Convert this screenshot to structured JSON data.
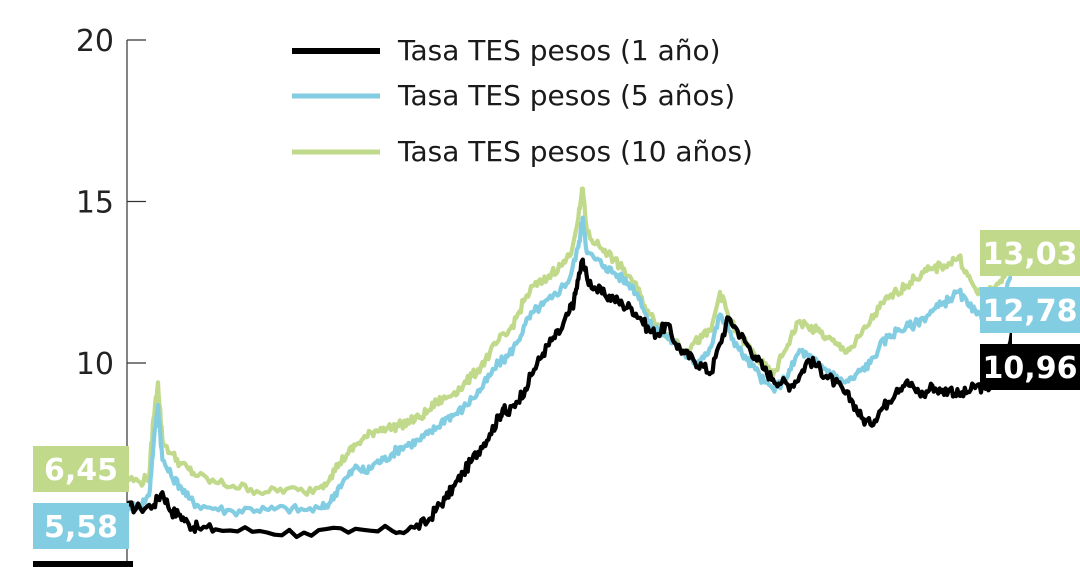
{
  "chart_data": {
    "type": "line",
    "ylim": [
      4.8,
      20
    ],
    "y_ticks": [
      {
        "value": 20,
        "label": "20"
      },
      {
        "value": 15,
        "label": "15"
      },
      {
        "value": 10,
        "label": "10"
      }
    ],
    "legend": {
      "placement": "top"
    },
    "series": [
      {
        "name": "Tasa TES pesos (1 año)",
        "color": "#000000",
        "start_label": "",
        "end_label": "10,96",
        "points": [
          [
            0,
            5.55
          ],
          [
            3,
            5.5
          ],
          [
            6,
            5.6
          ],
          [
            8,
            6.0
          ],
          [
            10,
            5.4
          ],
          [
            12,
            5.3
          ],
          [
            14,
            5.0
          ],
          [
            16,
            4.9
          ],
          [
            20,
            4.85
          ],
          [
            30,
            4.8
          ],
          [
            40,
            4.75
          ],
          [
            50,
            4.75
          ],
          [
            60,
            4.8
          ],
          [
            65,
            4.9
          ],
          [
            68,
            5.1
          ],
          [
            70,
            5.5
          ],
          [
            72,
            5.8
          ],
          [
            74,
            6.2
          ],
          [
            76,
            6.6
          ],
          [
            78,
            7.0
          ],
          [
            80,
            7.4
          ],
          [
            82,
            7.8
          ],
          [
            84,
            8.3
          ],
          [
            85,
            8.6
          ],
          [
            86,
            8.4
          ],
          [
            88,
            8.8
          ],
          [
            90,
            9.2
          ],
          [
            92,
            9.8
          ],
          [
            94,
            10.3
          ],
          [
            96,
            10.7
          ],
          [
            98,
            11.0
          ],
          [
            100,
            11.6
          ],
          [
            101,
            11.9
          ],
          [
            102,
            12.6
          ],
          [
            103,
            13.2
          ],
          [
            104,
            12.6
          ],
          [
            106,
            12.3
          ],
          [
            108,
            12.1
          ],
          [
            110,
            12.0
          ],
          [
            112,
            11.8
          ],
          [
            114,
            11.7
          ],
          [
            116,
            11.4
          ],
          [
            118,
            11.0
          ],
          [
            120,
            10.9
          ],
          [
            122,
            11.2
          ],
          [
            124,
            10.6
          ],
          [
            126,
            10.3
          ],
          [
            128,
            10.1
          ],
          [
            130,
            9.9
          ],
          [
            132,
            9.7
          ],
          [
            134,
            10.6
          ],
          [
            136,
            11.4
          ],
          [
            138,
            11.0
          ],
          [
            140,
            10.6
          ],
          [
            142,
            10.2
          ],
          [
            144,
            9.8
          ],
          [
            146,
            9.5
          ],
          [
            148,
            9.4
          ],
          [
            150,
            9.3
          ],
          [
            152,
            9.6
          ],
          [
            154,
            10.1
          ],
          [
            156,
            9.9
          ],
          [
            158,
            9.6
          ],
          [
            160,
            9.4
          ],
          [
            162,
            9.1
          ],
          [
            164,
            8.8
          ],
          [
            166,
            8.3
          ],
          [
            168,
            8.1
          ],
          [
            170,
            8.5
          ],
          [
            172,
            8.8
          ],
          [
            174,
            9.2
          ],
          [
            176,
            9.4
          ],
          [
            178,
            9.2
          ],
          [
            180,
            9.0
          ],
          [
            182,
            9.3
          ],
          [
            184,
            9.1
          ],
          [
            186,
            9.2
          ],
          [
            188,
            9.0
          ],
          [
            190,
            9.1
          ],
          [
            192,
            9.3
          ],
          [
            194,
            9.2
          ],
          [
            196,
            9.4
          ],
          [
            198,
            9.6
          ],
          [
            200,
            10.96
          ]
        ]
      },
      {
        "name": "Tasa TES pesos (5 años)",
        "color": "#83cde3",
        "start_label": "5,58",
        "end_label": "12,78",
        "points": [
          [
            0,
            5.58
          ],
          [
            3,
            5.6
          ],
          [
            5,
            5.9
          ],
          [
            6,
            7.5
          ],
          [
            7,
            8.7
          ],
          [
            8,
            7.0
          ],
          [
            10,
            6.5
          ],
          [
            12,
            6.2
          ],
          [
            14,
            5.8
          ],
          [
            16,
            5.6
          ],
          [
            20,
            5.5
          ],
          [
            24,
            5.4
          ],
          [
            28,
            5.5
          ],
          [
            32,
            5.45
          ],
          [
            36,
            5.5
          ],
          [
            40,
            5.45
          ],
          [
            44,
            5.5
          ],
          [
            46,
            5.7
          ],
          [
            48,
            6.2
          ],
          [
            50,
            6.5
          ],
          [
            52,
            6.8
          ],
          [
            54,
            6.6
          ],
          [
            56,
            6.9
          ],
          [
            58,
            7.0
          ],
          [
            60,
            7.2
          ],
          [
            62,
            7.4
          ],
          [
            64,
            7.5
          ],
          [
            66,
            7.6
          ],
          [
            68,
            7.8
          ],
          [
            70,
            8.0
          ],
          [
            72,
            8.3
          ],
          [
            74,
            8.4
          ],
          [
            76,
            8.6
          ],
          [
            78,
            8.9
          ],
          [
            80,
            9.2
          ],
          [
            82,
            9.6
          ],
          [
            84,
            10.0
          ],
          [
            86,
            10.2
          ],
          [
            88,
            10.6
          ],
          [
            90,
            11.2
          ],
          [
            92,
            11.6
          ],
          [
            94,
            11.8
          ],
          [
            96,
            12.0
          ],
          [
            98,
            12.3
          ],
          [
            100,
            12.6
          ],
          [
            102,
            13.6
          ],
          [
            103,
            14.5
          ],
          [
            104,
            13.4
          ],
          [
            106,
            13.2
          ],
          [
            108,
            13.0
          ],
          [
            110,
            12.8
          ],
          [
            112,
            12.6
          ],
          [
            114,
            12.4
          ],
          [
            116,
            12.0
          ],
          [
            118,
            11.2
          ],
          [
            120,
            11.0
          ],
          [
            122,
            10.8
          ],
          [
            124,
            10.6
          ],
          [
            126,
            10.3
          ],
          [
            128,
            10.0
          ],
          [
            130,
            10.2
          ],
          [
            132,
            10.5
          ],
          [
            134,
            11.5
          ],
          [
            136,
            11.0
          ],
          [
            138,
            10.5
          ],
          [
            140,
            10.1
          ],
          [
            142,
            9.8
          ],
          [
            144,
            9.4
          ],
          [
            146,
            9.2
          ],
          [
            148,
            9.4
          ],
          [
            150,
            9.8
          ],
          [
            152,
            10.4
          ],
          [
            154,
            10.2
          ],
          [
            156,
            10.0
          ],
          [
            158,
            9.8
          ],
          [
            160,
            9.6
          ],
          [
            162,
            9.4
          ],
          [
            164,
            9.5
          ],
          [
            166,
            9.8
          ],
          [
            168,
            10.0
          ],
          [
            170,
            10.5
          ],
          [
            172,
            10.8
          ],
          [
            174,
            11.0
          ],
          [
            176,
            11.1
          ],
          [
            178,
            11.2
          ],
          [
            180,
            11.4
          ],
          [
            182,
            11.6
          ],
          [
            184,
            11.8
          ],
          [
            186,
            12.0
          ],
          [
            188,
            12.2
          ],
          [
            190,
            11.8
          ],
          [
            192,
            11.5
          ],
          [
            194,
            11.3
          ],
          [
            196,
            11.5
          ],
          [
            198,
            11.9
          ],
          [
            200,
            12.78
          ]
        ]
      },
      {
        "name": "Tasa TES pesos (10 años)",
        "color": "#c0d98a",
        "start_label": "6,45",
        "end_label": "13,03",
        "points": [
          [
            0,
            6.45
          ],
          [
            3,
            6.3
          ],
          [
            5,
            6.5
          ],
          [
            6,
            8.3
          ],
          [
            7,
            9.4
          ],
          [
            8,
            7.6
          ],
          [
            10,
            7.2
          ],
          [
            12,
            6.9
          ],
          [
            14,
            6.7
          ],
          [
            16,
            6.5
          ],
          [
            20,
            6.3
          ],
          [
            24,
            6.2
          ],
          [
            28,
            6.1
          ],
          [
            32,
            6.0
          ],
          [
            36,
            6.1
          ],
          [
            40,
            6.0
          ],
          [
            44,
            6.2
          ],
          [
            46,
            6.5
          ],
          [
            48,
            6.9
          ],
          [
            50,
            7.2
          ],
          [
            52,
            7.5
          ],
          [
            54,
            7.7
          ],
          [
            56,
            7.9
          ],
          [
            58,
            8.0
          ],
          [
            60,
            8.0
          ],
          [
            62,
            8.1
          ],
          [
            64,
            8.2
          ],
          [
            66,
            8.3
          ],
          [
            68,
            8.5
          ],
          [
            70,
            8.8
          ],
          [
            72,
            8.9
          ],
          [
            74,
            9.1
          ],
          [
            76,
            9.3
          ],
          [
            78,
            9.6
          ],
          [
            80,
            9.9
          ],
          [
            82,
            10.3
          ],
          [
            84,
            10.7
          ],
          [
            86,
            10.9
          ],
          [
            88,
            11.4
          ],
          [
            90,
            12.0
          ],
          [
            92,
            12.4
          ],
          [
            94,
            12.5
          ],
          [
            96,
            12.8
          ],
          [
            98,
            13.0
          ],
          [
            100,
            13.3
          ],
          [
            102,
            14.5
          ],
          [
            103,
            15.4
          ],
          [
            104,
            14.0
          ],
          [
            106,
            13.7
          ],
          [
            108,
            13.5
          ],
          [
            110,
            13.2
          ],
          [
            112,
            12.9
          ],
          [
            114,
            12.6
          ],
          [
            116,
            12.1
          ],
          [
            118,
            11.5
          ],
          [
            120,
            11.2
          ],
          [
            122,
            10.9
          ],
          [
            124,
            10.7
          ],
          [
            126,
            10.4
          ],
          [
            128,
            10.6
          ],
          [
            130,
            10.8
          ],
          [
            132,
            11.0
          ],
          [
            134,
            12.2
          ],
          [
            136,
            11.4
          ],
          [
            138,
            10.9
          ],
          [
            140,
            10.6
          ],
          [
            142,
            10.2
          ],
          [
            144,
            9.9
          ],
          [
            146,
            9.6
          ],
          [
            148,
            10.2
          ],
          [
            150,
            10.8
          ],
          [
            152,
            11.3
          ],
          [
            154,
            11.1
          ],
          [
            156,
            11.0
          ],
          [
            158,
            10.8
          ],
          [
            160,
            10.6
          ],
          [
            162,
            10.4
          ],
          [
            164,
            10.5
          ],
          [
            166,
            10.9
          ],
          [
            168,
            11.3
          ],
          [
            170,
            11.7
          ],
          [
            172,
            12.0
          ],
          [
            174,
            12.2
          ],
          [
            176,
            12.4
          ],
          [
            178,
            12.6
          ],
          [
            180,
            12.8
          ],
          [
            182,
            12.9
          ],
          [
            184,
            13.0
          ],
          [
            186,
            13.1
          ],
          [
            188,
            13.3
          ],
          [
            190,
            12.7
          ],
          [
            192,
            12.2
          ],
          [
            194,
            12.1
          ],
          [
            196,
            12.3
          ],
          [
            198,
            12.7
          ],
          [
            200,
            13.03
          ]
        ]
      }
    ],
    "badges": [
      {
        "series": 2,
        "text": "6,45",
        "color": "#c0d98a"
      },
      {
        "series": 1,
        "text": "5,58",
        "color": "#83cde3"
      },
      {
        "series": 2,
        "text": "13,03",
        "color": "#c0d98a"
      },
      {
        "series": 1,
        "text": "12,78",
        "color": "#83cde3"
      },
      {
        "series": 0,
        "text": "10,96",
        "color": "#000000"
      }
    ]
  }
}
